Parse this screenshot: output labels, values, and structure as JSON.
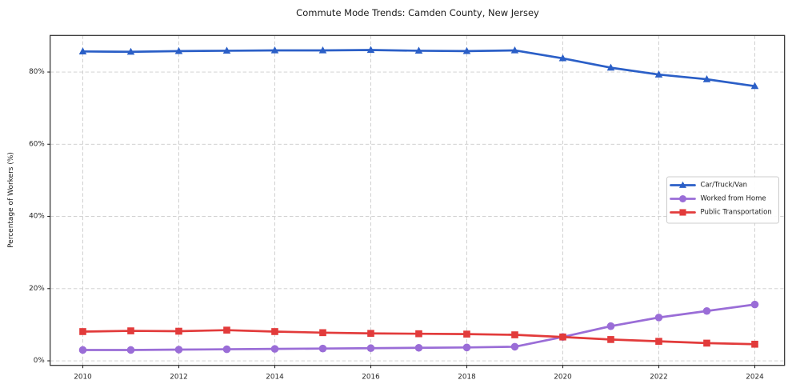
{
  "figure": {
    "background": "#ffffff",
    "axis_color": "#2b2b2b",
    "grid_color": "#cccccc",
    "text_color": "#262626"
  },
  "chart_data": {
    "type": "line",
    "title": "Commute Mode Trends: Camden County, New Jersey",
    "xlabel": "",
    "ylabel": "Percentage of Workers (%)",
    "x": [
      2010,
      2011,
      2012,
      2013,
      2014,
      2015,
      2016,
      2017,
      2018,
      2019,
      2020,
      2021,
      2022,
      2023,
      2024
    ],
    "series": [
      {
        "name": "Car/Truck/Van",
        "color": "#2b5fc7",
        "marker": "triangle",
        "values": [
          85.7,
          85.6,
          85.8,
          85.9,
          86.0,
          86.0,
          86.1,
          85.9,
          85.8,
          86.0,
          83.8,
          81.2,
          79.3,
          78.0,
          76.1
        ]
      },
      {
        "name": "Worked from Home",
        "color": "#9a6dd7",
        "marker": "circle",
        "values": [
          3.0,
          3.0,
          3.1,
          3.2,
          3.3,
          3.4,
          3.5,
          3.6,
          3.7,
          3.9,
          6.6,
          9.6,
          12.0,
          13.8,
          15.6
        ]
      },
      {
        "name": "Public Transportation",
        "color": "#e23b3b",
        "marker": "square",
        "values": [
          8.1,
          8.3,
          8.2,
          8.5,
          8.1,
          7.8,
          7.6,
          7.5,
          7.4,
          7.2,
          6.6,
          5.9,
          5.4,
          4.9,
          4.6
        ]
      }
    ],
    "xticks": [
      2010,
      2012,
      2014,
      2016,
      2018,
      2020,
      2022,
      2024
    ],
    "yticks": [
      0,
      20,
      40,
      60,
      80
    ],
    "ytick_labels": [
      "0%",
      "20%",
      "40%",
      "60%",
      "80%"
    ],
    "xlim": [
      2009.32,
      2024.62
    ],
    "ylim": [
      -1.26,
      90.14
    ],
    "grid": true,
    "legend": {
      "position": "center-right",
      "background": "#ffffff",
      "border_color": "#cccccc"
    }
  }
}
